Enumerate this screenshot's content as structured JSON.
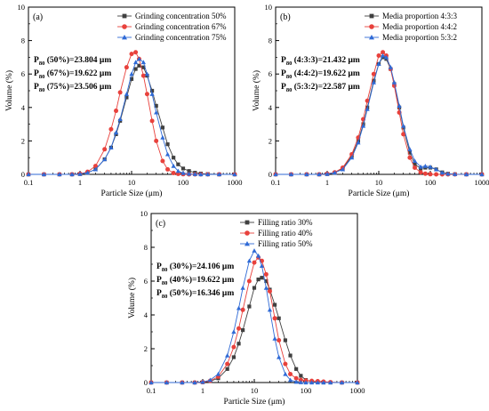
{
  "chart_data": [
    {
      "type": "scatter",
      "panel_label": "(a)",
      "xlabel": "Particle Size (μm)",
      "ylabel": "Volume (%)",
      "xscale": "log",
      "xlim": [
        0.1,
        1000
      ],
      "ylim": [
        0,
        10
      ],
      "x_ticks": [
        "0.1",
        "1",
        "10",
        "100",
        "1000"
      ],
      "y_ticks": [
        "0",
        "2",
        "4",
        "6",
        "8",
        "10"
      ],
      "grid": false,
      "legend_position": "top-right",
      "annotations": [
        {
          "main": "P",
          "sub": "80",
          "rest": " (50%)=23.804 μm"
        },
        {
          "main": "P",
          "sub": "80",
          "rest": " (67%)=19.622 μm"
        },
        {
          "main": "P",
          "sub": "80",
          "rest": " (75%)=23.506 μm"
        }
      ],
      "series": [
        {
          "name": "Grinding concentration 50%",
          "marker": "square",
          "color": "#404040",
          "x": [
            0.1,
            0.2,
            0.4,
            0.7,
            1.0,
            1.4,
            2,
            3,
            4,
            5,
            6,
            8,
            10,
            12,
            14,
            17,
            20,
            25,
            30,
            40,
            50,
            65,
            80,
            100,
            130,
            170,
            220,
            300,
            500,
            1000
          ],
          "y": [
            0,
            0,
            0,
            0,
            0.02,
            0.1,
            0.3,
            0.9,
            1.6,
            2.4,
            3.2,
            4.6,
            5.7,
            6.3,
            6.5,
            6.4,
            5.9,
            5.0,
            4.1,
            2.8,
            1.8,
            1.0,
            0.6,
            0.35,
            0.2,
            0.1,
            0.05,
            0.02,
            0,
            0
          ]
        },
        {
          "name": "Grinding concentration 67%",
          "marker": "circle",
          "color": "#e8413c",
          "x": [
            0.1,
            0.2,
            0.4,
            0.7,
            1.0,
            1.4,
            2,
            3,
            4,
            5,
            6,
            8,
            10,
            12,
            14,
            17,
            20,
            25,
            30,
            40,
            50,
            65,
            80,
            100,
            130,
            170,
            220,
            300,
            500,
            1000
          ],
          "y": [
            0,
            0,
            0,
            0,
            0.03,
            0.15,
            0.5,
            1.5,
            2.7,
            3.8,
            4.9,
            6.4,
            7.2,
            7.3,
            6.9,
            5.9,
            4.8,
            3.2,
            2.0,
            0.8,
            0.3,
            0.08,
            0.03,
            0.01,
            0,
            0,
            0,
            0,
            0,
            0
          ]
        },
        {
          "name": "Grinding concentration 75%",
          "marker": "triangle",
          "color": "#2f6ad6",
          "x": [
            0.1,
            0.2,
            0.4,
            0.7,
            1.0,
            1.4,
            2,
            3,
            4,
            5,
            6,
            8,
            10,
            12,
            14,
            17,
            20,
            25,
            30,
            40,
            50,
            65,
            80,
            100,
            130,
            170,
            220,
            300,
            500,
            1000
          ],
          "y": [
            0,
            0,
            0,
            0,
            0.02,
            0.1,
            0.3,
            0.9,
            1.6,
            2.5,
            3.3,
            4.8,
            6.0,
            6.7,
            6.9,
            6.7,
            6.0,
            4.8,
            3.7,
            2.2,
            1.2,
            0.5,
            0.2,
            0.08,
            0.03,
            0.01,
            0,
            0,
            0,
            0
          ]
        }
      ]
    },
    {
      "type": "scatter",
      "panel_label": "(b)",
      "xlabel": "Particle Size (μm)",
      "ylabel": "Volume (%)",
      "xscale": "log",
      "xlim": [
        0.1,
        1000
      ],
      "ylim": [
        0,
        10
      ],
      "x_ticks": [
        "0.1",
        "1",
        "10",
        "100",
        "1000"
      ],
      "y_ticks": [
        "0",
        "2",
        "4",
        "6",
        "8",
        "10"
      ],
      "grid": false,
      "legend_position": "top-right",
      "annotations": [
        {
          "main": "P",
          "sub": "80",
          "rest": " (4:3:3)=21.432 μm"
        },
        {
          "main": "P",
          "sub": "80",
          "rest": " (4:4:2)=19.622 μm"
        },
        {
          "main": "P",
          "sub": "80",
          "rest": " (5:3:2)=22.587 μm"
        }
      ],
      "series": [
        {
          "name": "Media proportion 4:3:3",
          "marker": "square",
          "color": "#404040",
          "x": [
            0.1,
            0.2,
            0.4,
            0.7,
            1.0,
            1.4,
            2,
            3,
            4,
            5,
            6,
            8,
            10,
            12,
            14,
            17,
            20,
            25,
            30,
            40,
            50,
            65,
            80,
            100,
            130,
            170,
            220,
            300,
            500,
            1000
          ],
          "y": [
            0,
            0,
            0,
            0,
            0.02,
            0.1,
            0.35,
            1.1,
            2.0,
            3.0,
            4.0,
            5.6,
            6.6,
            7.0,
            6.9,
            6.3,
            5.4,
            4.0,
            2.8,
            1.3,
            0.6,
            0.35,
            0.4,
            0.4,
            0.3,
            0.12,
            0.04,
            0.01,
            0,
            0
          ]
        },
        {
          "name": "Media proportion 4:4:2",
          "marker": "circle",
          "color": "#e8413c",
          "x": [
            0.1,
            0.2,
            0.4,
            0.7,
            1.0,
            1.4,
            2,
            3,
            4,
            5,
            6,
            8,
            10,
            12,
            14,
            17,
            20,
            25,
            30,
            40,
            50,
            65,
            80,
            100,
            130,
            170,
            220,
            300,
            500,
            1000
          ],
          "y": [
            0,
            0,
            0,
            0,
            0.03,
            0.12,
            0.4,
            1.2,
            2.2,
            3.3,
            4.4,
            6.0,
            7.1,
            7.3,
            7.1,
            6.3,
            5.3,
            3.7,
            2.4,
            1.0,
            0.4,
            0.12,
            0.04,
            0.01,
            0,
            0,
            0,
            0,
            0,
            0
          ]
        },
        {
          "name": "Media proportion 5:3:2",
          "marker": "triangle",
          "color": "#2f6ad6",
          "x": [
            0.1,
            0.2,
            0.4,
            0.7,
            1.0,
            1.4,
            2,
            3,
            4,
            5,
            6,
            8,
            10,
            12,
            14,
            17,
            20,
            25,
            30,
            40,
            50,
            65,
            80,
            100,
            130,
            170,
            220,
            300,
            500,
            1000
          ],
          "y": [
            0,
            0,
            0,
            0,
            0.02,
            0.1,
            0.3,
            1.0,
            1.9,
            2.9,
            3.9,
            5.5,
            6.6,
            7.1,
            7.0,
            6.4,
            5.5,
            4.1,
            2.9,
            1.5,
            0.8,
            0.45,
            0.5,
            0.45,
            0.3,
            0.1,
            0.03,
            0.01,
            0,
            0
          ]
        }
      ]
    },
    {
      "type": "scatter",
      "panel_label": "(c)",
      "xlabel": "Particle Size (μm)",
      "ylabel": "Volume (%)",
      "xscale": "log",
      "xlim": [
        0.1,
        1000
      ],
      "ylim": [
        0,
        10
      ],
      "x_ticks": [
        "0.1",
        "1",
        "10",
        "100",
        "1000"
      ],
      "y_ticks": [
        "0",
        "2",
        "4",
        "6",
        "8",
        "10"
      ],
      "grid": false,
      "legend_position": "top-right",
      "annotations": [
        {
          "main": "P",
          "sub": "80",
          "rest": " (30%)=24.106 μm"
        },
        {
          "main": "P",
          "sub": "80",
          "rest": " (40%)=19.622 μm"
        },
        {
          "main": "P",
          "sub": "80",
          "rest": " (50%)=16.346 μm"
        }
      ],
      "series": [
        {
          "name": "Filling ratio 30%",
          "marker": "square",
          "color": "#404040",
          "x": [
            0.1,
            0.2,
            0.4,
            0.7,
            1.0,
            1.4,
            2,
            3,
            4,
            5,
            6,
            8,
            10,
            12,
            14,
            17,
            20,
            25,
            30,
            40,
            50,
            65,
            80,
            100,
            130,
            170,
            220,
            300,
            500,
            1000
          ],
          "y": [
            0,
            0,
            0,
            0,
            0.02,
            0.08,
            0.25,
            0.8,
            1.5,
            2.3,
            3.1,
            4.5,
            5.6,
            6.1,
            6.2,
            6.0,
            5.5,
            4.6,
            3.8,
            2.5,
            1.6,
            0.8,
            0.4,
            0.15,
            0.05,
            0.02,
            0,
            0,
            0,
            0
          ]
        },
        {
          "name": "Filling ratio 40%",
          "marker": "circle",
          "color": "#e8413c",
          "x": [
            0.1,
            0.2,
            0.4,
            0.7,
            1.0,
            1.4,
            2,
            3,
            4,
            5,
            6,
            8,
            10,
            12,
            14,
            17,
            20,
            25,
            30,
            40,
            50,
            65,
            80,
            100,
            130,
            170,
            220,
            300,
            500,
            1000
          ],
          "y": [
            0,
            0,
            0,
            0,
            0.02,
            0.1,
            0.35,
            1.1,
            2.1,
            3.2,
            4.3,
            6.0,
            7.1,
            7.4,
            7.2,
            6.4,
            5.4,
            3.8,
            2.5,
            1.1,
            0.5,
            0.25,
            0.15,
            0.12,
            0.1,
            0.08,
            0.05,
            0.02,
            0,
            0
          ]
        },
        {
          "name": "Filling ratio 50%",
          "marker": "triangle",
          "color": "#2f6ad6",
          "x": [
            0.1,
            0.2,
            0.4,
            0.7,
            1.0,
            1.4,
            2,
            3,
            4,
            5,
            6,
            8,
            10,
            12,
            14,
            17,
            20,
            25,
            30,
            40,
            50,
            65,
            80,
            100,
            130,
            170,
            220,
            300,
            500,
            1000
          ],
          "y": [
            0,
            0,
            0,
            0,
            0.03,
            0.15,
            0.5,
            1.6,
            3.0,
            4.4,
            5.6,
            7.2,
            7.8,
            7.5,
            6.9,
            5.6,
            4.3,
            2.6,
            1.5,
            0.5,
            0.15,
            0.04,
            0.01,
            0,
            0,
            0,
            0,
            0,
            0,
            0
          ]
        }
      ]
    }
  ]
}
